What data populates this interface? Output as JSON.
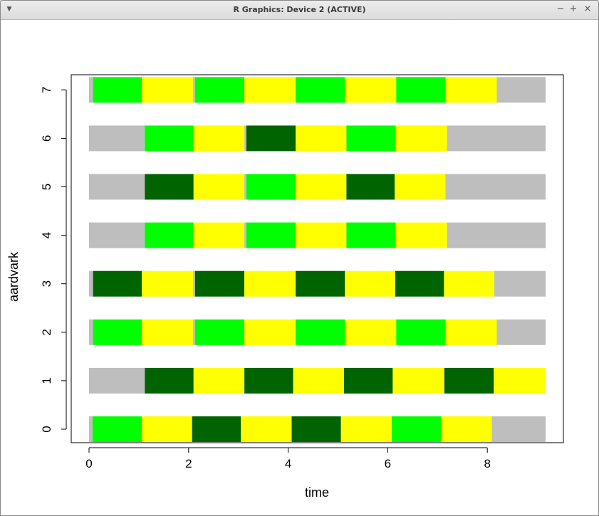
{
  "window": {
    "title": "R Graphics: Device 2 (ACTIVE)",
    "menu_icon": "triangle-down-icon",
    "minimize_label": "−",
    "maximize_label": "+",
    "close_label": "×"
  },
  "chart_data": {
    "type": "bar",
    "orientation": "horizontal-stacked-timeline",
    "xlabel": "time",
    "ylabel": "aardvark",
    "xlim": [
      0,
      9.2
    ],
    "ylim": [
      0,
      7
    ],
    "x_ticks": [
      "0",
      "2",
      "4",
      "6",
      "8"
    ],
    "y_ticks": [
      "0",
      "1",
      "2",
      "3",
      "4",
      "5",
      "6",
      "7"
    ],
    "grid": false,
    "legend": "none",
    "colors": {
      "grey": "#bebebe",
      "green": "#00ff00",
      "yellow": "#ffff00",
      "darkgreen": "#006400"
    },
    "rows": [
      {
        "y": 0,
        "segments": [
          {
            "start": 0.0,
            "end": 0.07,
            "color": "grey"
          },
          {
            "start": 0.07,
            "end": 1.06,
            "color": "green"
          },
          {
            "start": 1.06,
            "end": 2.07,
            "color": "yellow"
          },
          {
            "start": 2.07,
            "end": 3.05,
            "color": "darkgreen"
          },
          {
            "start": 3.05,
            "end": 4.07,
            "color": "yellow"
          },
          {
            "start": 4.07,
            "end": 5.06,
            "color": "darkgreen"
          },
          {
            "start": 5.06,
            "end": 6.08,
            "color": "yellow"
          },
          {
            "start": 6.08,
            "end": 7.07,
            "color": "green"
          },
          {
            "start": 7.07,
            "end": 8.09,
            "color": "yellow"
          },
          {
            "start": 8.09,
            "end": 9.17,
            "color": "grey"
          }
        ]
      },
      {
        "y": 1,
        "segments": [
          {
            "start": 0.0,
            "end": 1.12,
            "color": "grey"
          },
          {
            "start": 1.12,
            "end": 2.1,
            "color": "darkgreen"
          },
          {
            "start": 2.1,
            "end": 3.12,
            "color": "yellow"
          },
          {
            "start": 3.12,
            "end": 4.1,
            "color": "darkgreen"
          },
          {
            "start": 4.1,
            "end": 5.12,
            "color": "yellow"
          },
          {
            "start": 5.12,
            "end": 6.1,
            "color": "darkgreen"
          },
          {
            "start": 6.1,
            "end": 7.12,
            "color": "yellow"
          },
          {
            "start": 7.12,
            "end": 7.14,
            "color": "grey"
          },
          {
            "start": 7.14,
            "end": 8.13,
            "color": "darkgreen"
          },
          {
            "start": 8.13,
            "end": 9.17,
            "color": "yellow"
          }
        ]
      },
      {
        "y": 2,
        "segments": [
          {
            "start": 0.0,
            "end": 0.08,
            "color": "grey"
          },
          {
            "start": 0.08,
            "end": 1.06,
            "color": "green"
          },
          {
            "start": 1.06,
            "end": 2.09,
            "color": "yellow"
          },
          {
            "start": 2.09,
            "end": 2.13,
            "color": "grey"
          },
          {
            "start": 2.13,
            "end": 3.12,
            "color": "green"
          },
          {
            "start": 3.12,
            "end": 4.15,
            "color": "yellow"
          },
          {
            "start": 4.15,
            "end": 5.14,
            "color": "green"
          },
          {
            "start": 5.14,
            "end": 6.17,
            "color": "yellow"
          },
          {
            "start": 6.17,
            "end": 7.16,
            "color": "green"
          },
          {
            "start": 7.16,
            "end": 8.19,
            "color": "yellow"
          },
          {
            "start": 8.19,
            "end": 9.17,
            "color": "grey"
          }
        ]
      },
      {
        "y": 3,
        "segments": [
          {
            "start": 0.0,
            "end": 0.08,
            "color": "grey"
          },
          {
            "start": 0.08,
            "end": 1.06,
            "color": "darkgreen"
          },
          {
            "start": 1.06,
            "end": 2.09,
            "color": "yellow"
          },
          {
            "start": 2.09,
            "end": 2.13,
            "color": "grey"
          },
          {
            "start": 2.13,
            "end": 3.12,
            "color": "darkgreen"
          },
          {
            "start": 3.12,
            "end": 4.15,
            "color": "yellow"
          },
          {
            "start": 4.15,
            "end": 5.14,
            "color": "darkgreen"
          },
          {
            "start": 5.14,
            "end": 6.15,
            "color": "yellow"
          },
          {
            "start": 6.15,
            "end": 7.13,
            "color": "darkgreen"
          },
          {
            "start": 7.13,
            "end": 8.14,
            "color": "yellow"
          },
          {
            "start": 8.14,
            "end": 9.17,
            "color": "grey"
          }
        ]
      },
      {
        "y": 4,
        "segments": [
          {
            "start": 0.0,
            "end": 1.12,
            "color": "grey"
          },
          {
            "start": 1.12,
            "end": 2.1,
            "color": "green"
          },
          {
            "start": 2.1,
            "end": 3.12,
            "color": "yellow"
          },
          {
            "start": 3.12,
            "end": 3.16,
            "color": "grey"
          },
          {
            "start": 3.16,
            "end": 4.15,
            "color": "green"
          },
          {
            "start": 4.15,
            "end": 5.17,
            "color": "yellow"
          },
          {
            "start": 5.17,
            "end": 6.16,
            "color": "green"
          },
          {
            "start": 6.16,
            "end": 7.19,
            "color": "yellow"
          },
          {
            "start": 7.19,
            "end": 9.17,
            "color": "grey"
          }
        ]
      },
      {
        "y": 5,
        "segments": [
          {
            "start": 0.0,
            "end": 1.12,
            "color": "grey"
          },
          {
            "start": 1.12,
            "end": 2.1,
            "color": "darkgreen"
          },
          {
            "start": 2.1,
            "end": 3.12,
            "color": "yellow"
          },
          {
            "start": 3.12,
            "end": 3.16,
            "color": "grey"
          },
          {
            "start": 3.16,
            "end": 4.15,
            "color": "green"
          },
          {
            "start": 4.15,
            "end": 5.17,
            "color": "yellow"
          },
          {
            "start": 5.17,
            "end": 6.14,
            "color": "darkgreen"
          },
          {
            "start": 6.14,
            "end": 7.16,
            "color": "yellow"
          },
          {
            "start": 7.16,
            "end": 9.17,
            "color": "grey"
          }
        ]
      },
      {
        "y": 6,
        "segments": [
          {
            "start": 0.0,
            "end": 1.12,
            "color": "grey"
          },
          {
            "start": 1.12,
            "end": 2.1,
            "color": "green"
          },
          {
            "start": 2.1,
            "end": 3.12,
            "color": "yellow"
          },
          {
            "start": 3.12,
            "end": 3.16,
            "color": "grey"
          },
          {
            "start": 3.16,
            "end": 4.15,
            "color": "darkgreen"
          },
          {
            "start": 4.15,
            "end": 5.17,
            "color": "yellow"
          },
          {
            "start": 5.17,
            "end": 6.16,
            "color": "green"
          },
          {
            "start": 6.16,
            "end": 7.19,
            "color": "yellow"
          },
          {
            "start": 7.19,
            "end": 9.17,
            "color": "grey"
          }
        ]
      },
      {
        "y": 7,
        "segments": [
          {
            "start": 0.0,
            "end": 0.08,
            "color": "grey"
          },
          {
            "start": 0.08,
            "end": 1.06,
            "color": "green"
          },
          {
            "start": 1.06,
            "end": 2.09,
            "color": "yellow"
          },
          {
            "start": 2.09,
            "end": 2.13,
            "color": "grey"
          },
          {
            "start": 2.13,
            "end": 3.12,
            "color": "green"
          },
          {
            "start": 3.12,
            "end": 4.15,
            "color": "yellow"
          },
          {
            "start": 4.15,
            "end": 5.14,
            "color": "green"
          },
          {
            "start": 5.14,
            "end": 6.17,
            "color": "yellow"
          },
          {
            "start": 6.17,
            "end": 7.16,
            "color": "green"
          },
          {
            "start": 7.16,
            "end": 8.19,
            "color": "yellow"
          },
          {
            "start": 8.19,
            "end": 9.17,
            "color": "grey"
          }
        ]
      }
    ]
  }
}
